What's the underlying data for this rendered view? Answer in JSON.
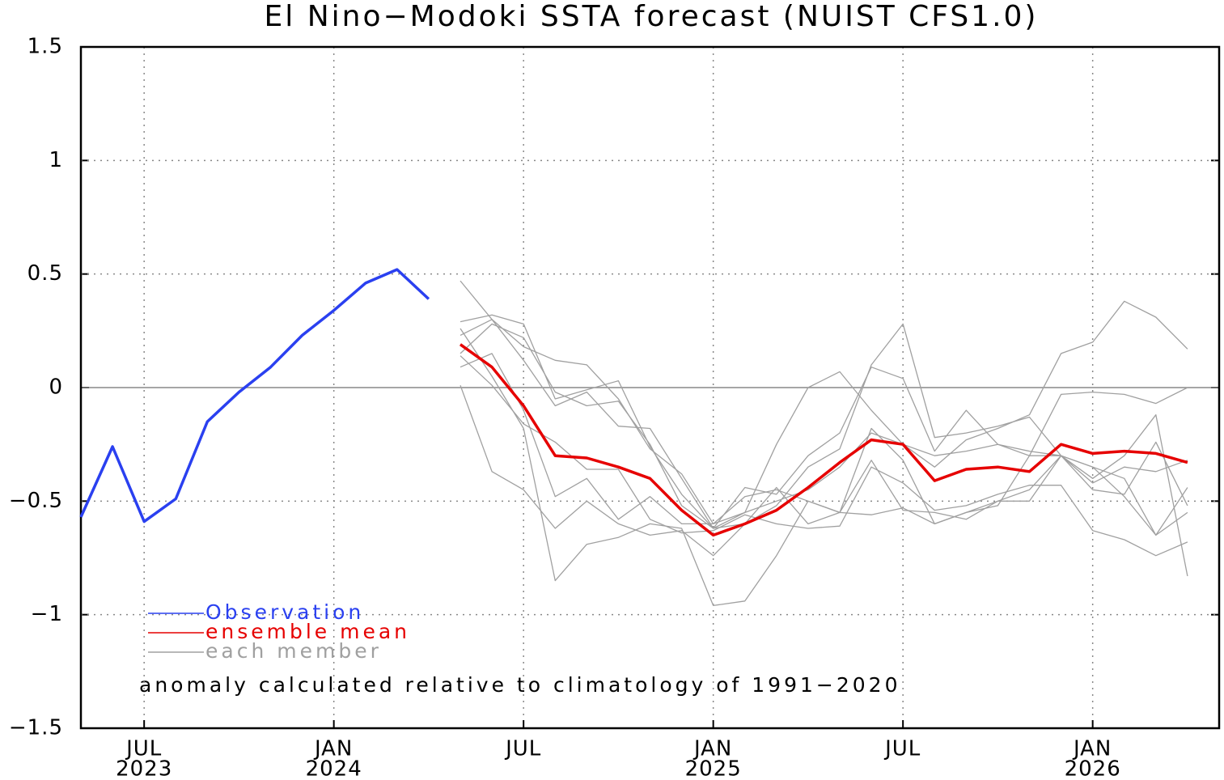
{
  "chart_data": {
    "type": "line",
    "title": "El Nino−Modoki SSTA forecast (NUIST CFS1.0)",
    "annotation": "anomaly calculated relative to climatology of 1991−2020",
    "x": [
      "2023-05",
      "2023-06",
      "2023-07",
      "2023-08",
      "2023-09",
      "2023-10",
      "2023-11",
      "2023-12",
      "2024-01",
      "2024-02",
      "2024-03",
      "2024-04",
      "2024-05",
      "2024-06",
      "2024-07",
      "2024-08",
      "2024-09",
      "2024-10",
      "2024-11",
      "2024-12",
      "2025-01",
      "2025-02",
      "2025-03",
      "2025-04",
      "2025-05",
      "2025-06",
      "2025-07",
      "2025-08",
      "2025-09",
      "2025-10",
      "2025-11",
      "2025-12",
      "2026-01",
      "2026-02",
      "2026-03",
      "2026-04"
    ],
    "xlim": [
      "2023-05",
      "2026-05"
    ],
    "xticks": [
      {
        "value": "2023-07",
        "label": "JUL",
        "year": "2023"
      },
      {
        "value": "2024-01",
        "label": "JAN",
        "year": "2024"
      },
      {
        "value": "2024-07",
        "label": "JUL"
      },
      {
        "value": "2025-01",
        "label": "JAN",
        "year": "2025"
      },
      {
        "value": "2025-07",
        "label": "JUL"
      },
      {
        "value": "2026-01",
        "label": "JAN",
        "year": "2026"
      }
    ],
    "ylim": [
      -1.5,
      1.5
    ],
    "yticks": [
      {
        "value": -1.5,
        "label": "−1.5"
      },
      {
        "value": -1,
        "label": "−1"
      },
      {
        "value": -0.5,
        "label": "−0.5"
      },
      0,
      0.5,
      1,
      1.5
    ],
    "grid": true,
    "series": [
      {
        "name": "Observation",
        "color": "#2a40f0",
        "values": [
          -0.57,
          -0.26,
          -0.59,
          -0.49,
          -0.15,
          -0.02,
          0.09,
          0.23,
          0.34,
          0.46,
          0.52,
          0.39,
          null,
          null,
          null,
          null,
          null,
          null,
          null,
          null,
          null,
          null,
          null,
          null,
          null,
          null,
          null,
          null,
          null,
          null,
          null,
          null,
          null,
          null,
          null,
          null
        ]
      },
      {
        "name": "ensemble mean",
        "color": "#e60000",
        "values": [
          null,
          null,
          null,
          null,
          null,
          null,
          null,
          null,
          null,
          null,
          null,
          null,
          0.19,
          0.09,
          -0.08,
          -0.3,
          -0.31,
          -0.35,
          -0.4,
          -0.54,
          -0.65,
          -0.6,
          -0.54,
          -0.44,
          -0.33,
          -0.23,
          -0.25,
          -0.41,
          -0.36,
          -0.35,
          -0.37,
          -0.25,
          -0.29,
          -0.28,
          -0.29,
          -0.33
        ]
      }
    ],
    "members": {
      "name": "each member",
      "color": "#a0a0a0",
      "values": [
        [
          null,
          null,
          null,
          null,
          null,
          null,
          null,
          null,
          null,
          null,
          null,
          null,
          0.47,
          0.3,
          0.18,
          0.12,
          0.1,
          -0.05,
          -0.27,
          -0.38,
          -0.6,
          -0.55,
          -0.5,
          -0.45,
          -0.35,
          -0.2,
          -0.25,
          -0.35,
          -0.23,
          -0.18,
          -0.12,
          0.15,
          0.2,
          0.38,
          0.31,
          0.17
        ],
        [
          null,
          null,
          null,
          null,
          null,
          null,
          null,
          null,
          null,
          null,
          null,
          null,
          0.29,
          0.32,
          0.28,
          -0.05,
          -0.01,
          0.03,
          -0.26,
          -0.47,
          -0.62,
          -0.55,
          -0.25,
          0.0,
          0.07,
          -0.1,
          -0.25,
          -0.3,
          -0.28,
          -0.25,
          -0.28,
          -0.3,
          -0.35,
          -0.48,
          -0.65,
          -0.55
        ],
        [
          null,
          null,
          null,
          null,
          null,
          null,
          null,
          null,
          null,
          null,
          null,
          null,
          0.23,
          0.3,
          0.12,
          -0.08,
          -0.02,
          -0.17,
          -0.18,
          -0.4,
          -0.62,
          -0.44,
          -0.47,
          -0.3,
          -0.2,
          0.09,
          0.04,
          -0.28,
          -0.1,
          -0.25,
          -0.3,
          -0.03,
          -0.02,
          -0.03,
          -0.07,
          0.0
        ],
        [
          null,
          null,
          null,
          null,
          null,
          null,
          null,
          null,
          null,
          null,
          null,
          null,
          0.15,
          0.28,
          0.22,
          -0.02,
          -0.08,
          -0.06,
          -0.25,
          -0.52,
          -0.62,
          -0.6,
          -0.52,
          -0.35,
          -0.27,
          0.1,
          0.28,
          -0.22,
          -0.2,
          -0.17,
          -0.13,
          -0.3,
          -0.4,
          -0.3,
          -0.12,
          -0.83
        ],
        [
          null,
          null,
          null,
          null,
          null,
          null,
          null,
          null,
          null,
          null,
          null,
          null,
          0.09,
          0.15,
          -0.1,
          -0.48,
          -0.4,
          -0.58,
          -0.48,
          -0.6,
          -0.6,
          -0.48,
          -0.45,
          -0.5,
          -0.55,
          -0.18,
          -0.32,
          -0.6,
          -0.55,
          -0.52,
          -0.3,
          -0.3,
          -0.42,
          -0.35,
          -0.37,
          -0.32
        ],
        [
          null,
          null,
          null,
          null,
          null,
          null,
          null,
          null,
          null,
          null,
          null,
          null,
          0.01,
          -0.37,
          -0.45,
          -0.62,
          -0.5,
          -0.6,
          -0.65,
          -0.63,
          -0.74,
          -0.6,
          -0.44,
          -0.6,
          -0.55,
          -0.56,
          -0.53,
          -0.6,
          -0.55,
          -0.5,
          -0.45,
          -0.3,
          -0.45,
          -0.47,
          -0.24,
          -0.52
        ],
        [
          null,
          null,
          null,
          null,
          null,
          null,
          null,
          null,
          null,
          null,
          null,
          null,
          0.26,
          0.05,
          -0.18,
          -0.85,
          -0.69,
          -0.66,
          -0.6,
          -0.62,
          -0.96,
          -0.94,
          -0.74,
          -0.5,
          -0.55,
          -0.32,
          -0.54,
          -0.55,
          -0.58,
          -0.5,
          -0.5,
          -0.3,
          -0.35,
          -0.4,
          -0.65,
          -0.44
        ],
        [
          null,
          null,
          null,
          null,
          null,
          null,
          null,
          null,
          null,
          null,
          null,
          null,
          0.14,
          0.01,
          -0.16,
          -0.24,
          -0.36,
          -0.36,
          -0.58,
          -0.64,
          -0.63,
          -0.56,
          -0.6,
          -0.62,
          -0.61,
          -0.35,
          -0.42,
          -0.54,
          -0.52,
          -0.47,
          -0.43,
          -0.43,
          -0.63,
          -0.67,
          -0.74,
          -0.68
        ]
      ]
    }
  }
}
